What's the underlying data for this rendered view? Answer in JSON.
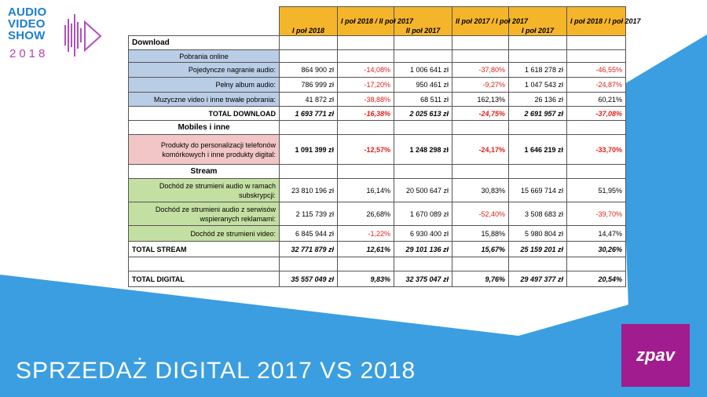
{
  "logo": {
    "line1": "AUDIO",
    "line2": "VIDEO",
    "line3": "SHOW",
    "year": "2018"
  },
  "slide_title": "SPRZEDAŻ DIGITAL 2017 VS 2018",
  "brand": "zpav",
  "colors": {
    "blue_accent": "#3b9ee0",
    "header_yellow": "#f5b52b",
    "download_blue": "#b9cde6",
    "mobile_pink": "#f2c6c6",
    "stream_green": "#c4dfa2",
    "negative_red": "#e0201a",
    "brand_purple": "#a01c8f"
  },
  "table": {
    "headers": [
      "I poł 2018",
      "I poł 2018 / II poł 2017",
      "II poł 2017",
      "II poł 2017 / I poł 2017",
      "I poł 2017",
      "I poł 2018 / I poł 2017"
    ],
    "download": {
      "title": "Download",
      "subtitle": "Pobrania online",
      "rows": [
        {
          "label": "Pojedyncze nagranie audio:",
          "values": [
            "864 900 zł",
            "-14,08%",
            "1 006 641 zł",
            "-37,80%",
            "1 618 278 zł",
            "-46,55%"
          ]
        },
        {
          "label": "Pełny album audio:",
          "values": [
            "786 999 zł",
            "-17,20%",
            "950 461 zł",
            "-9,27%",
            "1 047 543 zł",
            "-24,87%"
          ]
        },
        {
          "label": "Muzyczne video i inne trwałe pobrania:",
          "values": [
            "41 872 zł",
            "-38,88%",
            "68 511 zł",
            "162,13%",
            "26 136 zł",
            "60,21%"
          ]
        }
      ],
      "total": {
        "label": "TOTAL DOWNLOAD",
        "values": [
          "1 693 771 zł",
          "-16,38%",
          "2 025 613 zł",
          "-24,75%",
          "2 691 957 zł",
          "-37,08%"
        ]
      }
    },
    "mobiles": {
      "title": "Mobiles i inne",
      "row": {
        "label_line1": "Produkty do personalizacji telefonów",
        "label_line2": "komórkowych i inne produkty digital:",
        "values": [
          "1 091 399 zł",
          "-12,57%",
          "1 248 298 zł",
          "-24,17%",
          "1 646 219 zł",
          "-33,70%"
        ]
      }
    },
    "stream": {
      "title": "Stream",
      "rows": [
        {
          "label_line1": "Dochód ze strumieni audio w ramach",
          "label_line2": "subskrypcji:",
          "values": [
            "23 810 196 zł",
            "16,14%",
            "20 500 647 zł",
            "30,83%",
            "15 669 714 zł",
            "51,95%"
          ]
        },
        {
          "label_line1": "Dochód ze strumieni audio z serwisów",
          "label_line2": "wspieranych reklamami:",
          "values": [
            "2 115 739 zł",
            "26,68%",
            "1 670 089 zł",
            "-52,40%",
            "3 508 683 zł",
            "-39,70%"
          ]
        },
        {
          "label_line1": "Dochód ze strumieni video:",
          "label_line2": "",
          "values": [
            "6 845 944 zł",
            "-1,22%",
            "6 930 400 zł",
            "15,88%",
            "5 980 804 zł",
            "14,47%"
          ]
        }
      ],
      "total": {
        "label": "TOTAL STREAM",
        "values": [
          "32 771 879 zł",
          "12,61%",
          "29 101 136 zł",
          "15,67%",
          "25 159 201 zł",
          "30,26%"
        ]
      }
    },
    "digital_total": {
      "label": "TOTAL DIGITAL",
      "values": [
        "35 557 049 zł",
        "9,83%",
        "32 375 047 zł",
        "9,76%",
        "29 497 377 zł",
        "20,54%"
      ]
    }
  }
}
